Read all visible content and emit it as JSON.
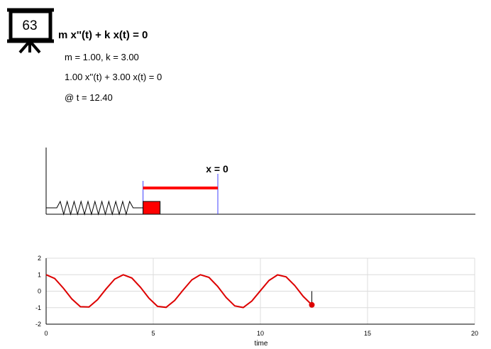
{
  "badge": {
    "number": "63",
    "icon": "presentation-board-icon"
  },
  "header": {
    "equation": "m x''(t) + k x(t) = 0",
    "params": "m = 1.00, k = 3.00",
    "instance": "1.00 x''(t) + 3.00 x(t) = 0",
    "time_label": "@ t = 12.40"
  },
  "scene": {
    "equilibrium_label": "x = 0",
    "displacement": -0.83,
    "colors": {
      "mass": "#ff0000",
      "arrow": "#ff0000",
      "guide": "#4040ff",
      "spring": "#000000"
    }
  },
  "chart_data": {
    "type": "line",
    "title": "",
    "xlabel": "time",
    "ylabel": "",
    "xlim": [
      0,
      20
    ],
    "ylim": [
      -2,
      2
    ],
    "x_ticks": [
      "0",
      "5",
      "10",
      "15",
      "20"
    ],
    "y_ticks": [
      "2",
      "1",
      "0",
      "-1",
      "-2"
    ],
    "x_tick_values": [
      0,
      5,
      10,
      15,
      20
    ],
    "y_tick_values": [
      2,
      1,
      0,
      -1,
      -2
    ],
    "grid": true,
    "series": [
      {
        "color": "#dd0000",
        "x": [
          0,
          0.4,
          0.8,
          1.2,
          1.6,
          2.0,
          2.4,
          2.8,
          3.2,
          3.6,
          4.0,
          4.4,
          4.8,
          5.2,
          5.6,
          6.0,
          6.4,
          6.8,
          7.2,
          7.6,
          8.0,
          8.4,
          8.8,
          9.2,
          9.6,
          10.0,
          10.4,
          10.8,
          11.2,
          11.6,
          12.0,
          12.4
        ],
        "y": [
          1.0,
          0.77,
          0.19,
          -0.47,
          -0.94,
          -0.96,
          -0.51,
          0.14,
          0.73,
          1.0,
          0.8,
          0.24,
          -0.43,
          -0.92,
          -0.98,
          -0.56,
          0.08,
          0.69,
          1.0,
          0.84,
          0.3,
          -0.38,
          -0.89,
          -0.99,
          -0.6,
          0.03,
          0.65,
          0.99,
          0.87,
          0.35,
          -0.32,
          -0.83
        ]
      }
    ],
    "current_point": {
      "x": 12.4,
      "y": -0.83,
      "color": "#dd0000"
    }
  }
}
